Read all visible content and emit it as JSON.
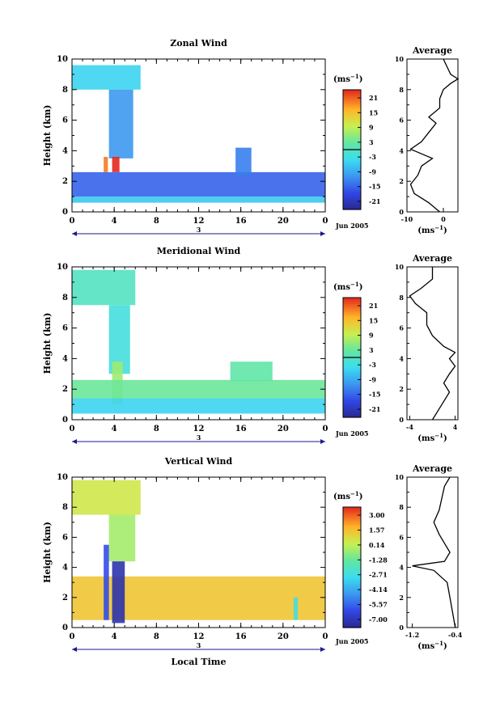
{
  "figure": {
    "xlabel_bottom": "Local Time",
    "date_label": "Jun 2005",
    "day_label": "3",
    "ylabel": "Height (km)",
    "unit": "(ms",
    "unit_sup": "−1",
    "unit_close": ")",
    "avg_title": "Average"
  },
  "chart_data": [
    {
      "type": "heatmap",
      "title": "Zonal Wind",
      "xlabel": "Local Time",
      "ylabel": "Height (km)",
      "xlim": [
        0,
        24
      ],
      "ylim": [
        0,
        10
      ],
      "x_ticks": [
        "0",
        "4",
        "8",
        "12",
        "16",
        "20",
        "0"
      ],
      "y_ticks": [
        "0",
        "2",
        "4",
        "6",
        "8",
        "10"
      ],
      "colorbar": {
        "label": "(ms⁻¹)",
        "ticks": [
          "21",
          "15",
          "9",
          "3",
          "-3",
          "-9",
          "-15",
          "-21"
        ],
        "zero_line": true
      },
      "regions": [
        {
          "t0": 0.0,
          "t1": 6.5,
          "h0": 8.0,
          "h1": 9.6,
          "value": -4
        },
        {
          "t0": 3.5,
          "t1": 5.8,
          "h0": 3.5,
          "h1": 8.0,
          "value": -9
        },
        {
          "t0": 3.8,
          "t1": 4.5,
          "h0": 2.6,
          "h1": 3.6,
          "value": 21
        },
        {
          "t0": 3.0,
          "t1": 3.4,
          "h0": 2.6,
          "h1": 3.6,
          "value": 17
        },
        {
          "t0": 0.0,
          "t1": 24.0,
          "h0": 1.0,
          "h1": 2.6,
          "value": -13
        },
        {
          "t0": 0.0,
          "t1": 24.0,
          "h0": 0.6,
          "h1": 1.0,
          "value": -5
        },
        {
          "t0": 15.5,
          "t1": 17.0,
          "h0": 2.4,
          "h1": 4.2,
          "value": -11
        }
      ],
      "average_profile": {
        "xlim": [
          -10,
          4
        ],
        "x_ticks": [
          "-10",
          "0"
        ],
        "y_ticks": [
          "0",
          "2",
          "4",
          "6",
          "8",
          "10"
        ],
        "points": [
          [
            -1,
            0.0
          ],
          [
            -4,
            0.6
          ],
          [
            -8,
            1.2
          ],
          [
            -9,
            1.8
          ],
          [
            -7,
            2.4
          ],
          [
            -6,
            3.0
          ],
          [
            -3,
            3.5
          ],
          [
            -6,
            3.8
          ],
          [
            -9,
            4.1
          ],
          [
            -6,
            4.6
          ],
          [
            -4,
            5.2
          ],
          [
            -2,
            5.8
          ],
          [
            -4,
            6.2
          ],
          [
            -1,
            6.8
          ],
          [
            -1,
            7.4
          ],
          [
            0,
            8.0
          ],
          [
            2,
            8.4
          ],
          [
            4,
            8.7
          ],
          [
            2,
            9.0
          ],
          [
            1,
            9.5
          ],
          [
            0,
            10.0
          ]
        ]
      }
    },
    {
      "type": "heatmap",
      "title": "Meridional Wind",
      "xlabel": "Local Time",
      "ylabel": "Height (km)",
      "xlim": [
        0,
        24
      ],
      "ylim": [
        0,
        10
      ],
      "x_ticks": [
        "0",
        "4",
        "8",
        "12",
        "16",
        "20",
        "0"
      ],
      "y_ticks": [
        "0",
        "2",
        "4",
        "6",
        "8",
        "10"
      ],
      "colorbar": {
        "label": "(ms⁻¹)",
        "ticks": [
          "21",
          "15",
          "9",
          "3",
          "-3",
          "-9",
          "-15",
          "-21"
        ],
        "zero_line": true
      },
      "regions": [
        {
          "t0": 0.0,
          "t1": 6.0,
          "h0": 7.5,
          "h1": 9.8,
          "value": 0
        },
        {
          "t0": 3.5,
          "t1": 5.5,
          "h0": 3.0,
          "h1": 7.5,
          "value": -2
        },
        {
          "t0": 3.8,
          "t1": 4.8,
          "h0": 1.0,
          "h1": 3.8,
          "value": 6
        },
        {
          "t0": 0.0,
          "t1": 24.0,
          "h0": 1.4,
          "h1": 2.6,
          "value": 3
        },
        {
          "t0": 0.0,
          "t1": 24.0,
          "h0": 0.4,
          "h1": 1.4,
          "value": -4
        },
        {
          "t0": 15.0,
          "t1": 19.0,
          "h0": 2.5,
          "h1": 3.8,
          "value": 2
        }
      ],
      "average_profile": {
        "xlim": [
          -4.5,
          4.5
        ],
        "x_ticks": [
          "-4",
          "4"
        ],
        "y_ticks": [
          "0",
          "2",
          "4",
          "6",
          "8",
          "10"
        ],
        "points": [
          [
            0,
            0.0
          ],
          [
            1,
            0.6
          ],
          [
            2,
            1.2
          ],
          [
            3,
            1.8
          ],
          [
            2,
            2.4
          ],
          [
            3,
            3.0
          ],
          [
            4,
            3.5
          ],
          [
            3,
            4.0
          ],
          [
            4,
            4.4
          ],
          [
            2,
            4.8
          ],
          [
            0,
            5.5
          ],
          [
            -1,
            6.2
          ],
          [
            -1,
            7.0
          ],
          [
            -3,
            7.6
          ],
          [
            -4,
            8.1
          ],
          [
            -2,
            8.6
          ],
          [
            0,
            9.2
          ],
          [
            0,
            10.0
          ]
        ]
      }
    },
    {
      "type": "heatmap",
      "title": "Vertical Wind",
      "xlabel": "Local Time",
      "ylabel": "Height (km)",
      "xlim": [
        0,
        24
      ],
      "ylim": [
        0,
        10
      ],
      "x_ticks": [
        "0",
        "4",
        "8",
        "12",
        "16",
        "20",
        "0"
      ],
      "y_ticks": [
        "0",
        "2",
        "4",
        "6",
        "8",
        "10"
      ],
      "colorbar": {
        "label": "(ms⁻¹)",
        "ticks": [
          "3.00",
          "1.57",
          "0.14",
          "-1.28",
          "-2.71",
          "-4.14",
          "-5.57",
          "-7.00"
        ],
        "zero_line": false
      },
      "regions": [
        {
          "t0": 0.0,
          "t1": 6.5,
          "h0": 7.5,
          "h1": 9.8,
          "value": 0.2
        },
        {
          "t0": 3.5,
          "t1": 6.0,
          "h0": 4.4,
          "h1": 7.5,
          "value": -0.5
        },
        {
          "t0": 0.0,
          "t1": 24.0,
          "h0": 0.5,
          "h1": 3.4,
          "value": 1.0
        },
        {
          "t0": 3.8,
          "t1": 5.0,
          "h0": 0.3,
          "h1": 4.4,
          "value": -6.5
        },
        {
          "t0": 3.0,
          "t1": 3.5,
          "h0": 0.5,
          "h1": 5.5,
          "value": -5.5
        },
        {
          "t0": 21.0,
          "t1": 21.4,
          "h0": 0.5,
          "h1": 2.0,
          "value": -2.5
        }
      ],
      "average_profile": {
        "xlim": [
          -1.3,
          -0.35
        ],
        "x_ticks": [
          "-1.2",
          "-0.4"
        ],
        "y_ticks": [
          "0",
          "2",
          "4",
          "6",
          "8",
          "10"
        ],
        "points": [
          [
            -0.4,
            0.0
          ],
          [
            -0.45,
            1.0
          ],
          [
            -0.5,
            2.0
          ],
          [
            -0.55,
            3.0
          ],
          [
            -0.8,
            3.8
          ],
          [
            -1.2,
            4.1
          ],
          [
            -0.6,
            4.4
          ],
          [
            -0.5,
            5.0
          ],
          [
            -0.6,
            5.6
          ],
          [
            -0.7,
            6.2
          ],
          [
            -0.8,
            7.0
          ],
          [
            -0.7,
            7.8
          ],
          [
            -0.65,
            8.6
          ],
          [
            -0.6,
            9.4
          ],
          [
            -0.5,
            10.0
          ]
        ]
      }
    }
  ]
}
